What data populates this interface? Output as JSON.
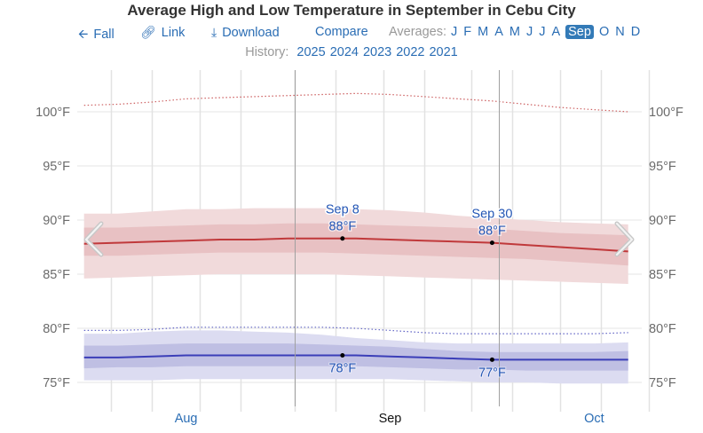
{
  "header": {
    "title": "Average High and Low Temperature in September in Cebu City"
  },
  "nav": {
    "back": {
      "icon": "arrow-left-icon",
      "label": "Fall"
    },
    "link": {
      "icon": "link-icon",
      "label": "Link"
    },
    "download": {
      "icon": "download-icon",
      "label": "Download"
    },
    "compare": "Compare",
    "averages_label": "Averages:",
    "months": [
      "J",
      "F",
      "M",
      "A",
      "M",
      "J",
      "J",
      "A",
      "Sep",
      "O",
      "N",
      "D"
    ],
    "selected_month_index": 8
  },
  "history": {
    "label": "History:",
    "years": [
      "2025",
      "2024",
      "2023",
      "2022",
      "2021"
    ]
  },
  "controls": {
    "prev_icon": "chevron-left-icon",
    "next_icon": "chevron-right-icon"
  },
  "colors": {
    "high_line": "#c0393b",
    "high_band_outer": "#f1dadb",
    "high_band_inner": "#e8c1c3",
    "low_line": "#3b3eb8",
    "low_band_outer": "#dcdcf1",
    "low_band_inner": "#bfbfe3",
    "link": "#2a6db4",
    "annotation": "#2456b5",
    "selected_month_bg": "#337ab7"
  },
  "chart_data": {
    "type": "area",
    "title": "Average High and Low Temperature in September in Cebu City",
    "xlabel": "",
    "ylabel": "",
    "unit": "°F",
    "x_domain_days": [
      -31,
      52
    ],
    "x_ticks": [
      {
        "day": -15,
        "label": "Aug",
        "highlight": false
      },
      {
        "day": 15,
        "label": "Sep",
        "highlight": true
      },
      {
        "day": 45,
        "label": "Oct",
        "highlight": false
      }
    ],
    "x_grid_days": [
      -26,
      -20,
      -13,
      -7,
      1,
      7,
      14,
      20,
      27,
      33,
      40,
      46,
      53
    ],
    "month_boundaries_days": [
      1,
      31
    ],
    "ylim": [
      72.5,
      102.5
    ],
    "y_ticks": [
      75,
      80,
      85,
      90,
      95,
      100
    ],
    "y_tick_labels": [
      "75°F",
      "80°F",
      "85°F",
      "90°F",
      "95°F",
      "100°F"
    ],
    "grid": true,
    "x_days": [
      -30,
      -25,
      -20,
      -15,
      -10,
      -5,
      0,
      5,
      10,
      15,
      20,
      25,
      30,
      35,
      40,
      45,
      50
    ],
    "series": [
      {
        "name": "Average High",
        "line": [
          87.8,
          87.9,
          88.0,
          88.1,
          88.2,
          88.2,
          88.3,
          88.3,
          88.3,
          88.2,
          88.1,
          88.0,
          87.9,
          87.7,
          87.5,
          87.3,
          87.1
        ],
        "p25": [
          86.7,
          86.7,
          86.8,
          86.9,
          87.0,
          87.0,
          87.0,
          87.0,
          86.9,
          86.8,
          86.7,
          86.6,
          86.5,
          86.4,
          86.2,
          86.0,
          85.8
        ],
        "p75": [
          89.3,
          89.3,
          89.4,
          89.5,
          89.6,
          89.6,
          89.7,
          89.7,
          89.6,
          89.5,
          89.4,
          89.3,
          89.2,
          89.0,
          88.8,
          88.7,
          88.6
        ],
        "p10": [
          84.6,
          84.7,
          84.8,
          84.9,
          85.0,
          85.0,
          85.0,
          85.0,
          84.9,
          84.8,
          84.7,
          84.6,
          84.5,
          84.4,
          84.3,
          84.2,
          84.1
        ],
        "p90": [
          90.6,
          90.6,
          90.8,
          91.0,
          91.0,
          91.1,
          91.1,
          91.1,
          91.0,
          90.9,
          90.7,
          90.4,
          90.2,
          90.0,
          89.8,
          89.7,
          89.6
        ],
        "record_dotted": [
          100.6,
          100.7,
          100.9,
          101.2,
          101.3,
          101.4,
          101.5,
          101.6,
          101.7,
          101.6,
          101.4,
          101.2,
          101.0,
          100.7,
          100.4,
          100.2,
          100.0
        ]
      },
      {
        "name": "Average Low",
        "line": [
          77.3,
          77.3,
          77.4,
          77.5,
          77.5,
          77.5,
          77.5,
          77.5,
          77.5,
          77.4,
          77.3,
          77.2,
          77.1,
          77.1,
          77.1,
          77.1,
          77.1
        ],
        "p25": [
          76.3,
          76.4,
          76.4,
          76.5,
          76.5,
          76.5,
          76.5,
          76.5,
          76.5,
          76.4,
          76.3,
          76.2,
          76.2,
          76.1,
          76.1,
          76.1,
          76.1
        ],
        "p75": [
          78.4,
          78.4,
          78.5,
          78.6,
          78.6,
          78.6,
          78.6,
          78.5,
          78.4,
          78.3,
          78.1,
          77.9,
          77.8,
          77.8,
          77.8,
          77.8,
          77.9
        ],
        "p10": [
          75.2,
          75.2,
          75.2,
          75.3,
          75.3,
          75.3,
          75.3,
          75.3,
          75.3,
          75.3,
          75.2,
          75.1,
          75.0,
          75.0,
          74.9,
          74.9,
          74.9
        ],
        "p90": [
          79.5,
          79.5,
          79.7,
          79.8,
          79.8,
          79.7,
          79.6,
          79.4,
          79.1,
          78.9,
          78.7,
          78.6,
          78.6,
          78.6,
          78.6,
          78.6,
          78.7
        ],
        "record_dotted": [
          79.8,
          79.8,
          79.9,
          80.1,
          80.1,
          80.1,
          80.1,
          80.1,
          80.0,
          79.8,
          79.6,
          79.5,
          79.5,
          79.5,
          79.5,
          79.5,
          79.6
        ]
      }
    ],
    "annotations": [
      {
        "series": "Average High",
        "day": 8,
        "value": 88.3,
        "date_label": "Sep 8",
        "value_label": "88°F",
        "position": "above"
      },
      {
        "series": "Average High",
        "day": 30,
        "value": 87.9,
        "date_label": "Sep 30",
        "value_label": "88°F",
        "position": "above"
      },
      {
        "series": "Average Low",
        "day": 8,
        "value": 77.5,
        "date_label": "",
        "value_label": "78°F",
        "position": "below"
      },
      {
        "series": "Average Low",
        "day": 30,
        "value": 77.1,
        "date_label": "",
        "value_label": "77°F",
        "position": "below"
      }
    ]
  }
}
